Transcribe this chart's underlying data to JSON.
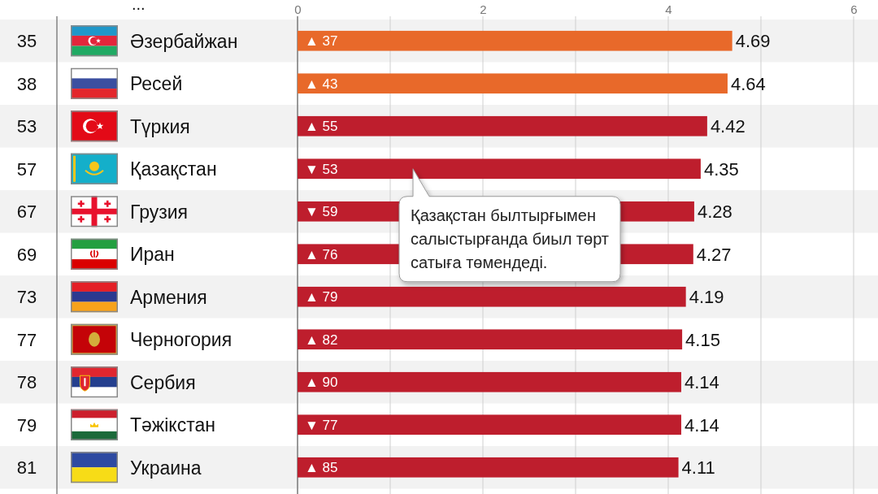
{
  "chart_data": {
    "type": "bar",
    "orientation": "horizontal",
    "categories": [
      "Әзербайжан",
      "Ресей",
      "Түркия",
      "Қазақстан",
      "Грузия",
      "Иран",
      "Армения",
      "Черногория",
      "Сербия",
      "Тәжікстан",
      "Украина"
    ],
    "y2_categories": [
      "35",
      "38",
      "53",
      "57",
      "67",
      "69",
      "73",
      "77",
      "78",
      "79",
      "81"
    ],
    "values": [
      4.69,
      4.64,
      4.42,
      4.35,
      4.28,
      4.27,
      4.19,
      4.15,
      4.14,
      4.14,
      4.11
    ],
    "colors": [
      "#e8692a",
      "#e8692a",
      "#be1e2d",
      "#be1e2d",
      "#be1e2d",
      "#be1e2d",
      "#be1e2d",
      "#be1e2d",
      "#be1e2d",
      "#be1e2d",
      "#be1e2d"
    ],
    "xlim": [
      0,
      6
    ],
    "xticks": [
      0,
      {
        "value": 1,
        "label": null
      },
      2,
      {
        "value": 3,
        "label": null
      },
      4,
      {
        "value": 5,
        "label": null
      },
      6
    ],
    "grid": "x",
    "data_labels": true,
    "annotations": [
      "...",
      "▲ 37",
      "▲ 43",
      "▲ 55",
      "▼ 53",
      "▼ 59",
      "▲ 76",
      "▲ 79",
      "▲ 82",
      "▲ 90",
      "▼ 77",
      "▲ 85",
      "Қазақстан былтырғымен салыстырғанда биыл төрт сатыға төмендеді."
    ]
  }
}
